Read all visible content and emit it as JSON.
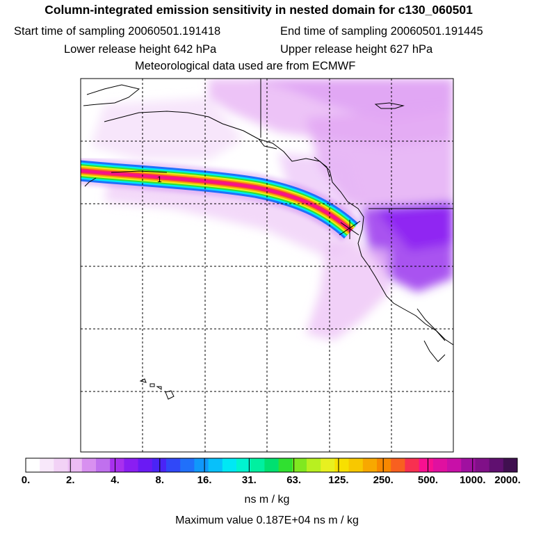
{
  "title": "Column-integrated emission sensitivity in nested domain for c130_060501",
  "start_label": "Start time of sampling 20060501.191418",
  "end_label": "End time of sampling 20060501.191445",
  "lower_label": "Lower release height  642 hPa",
  "upper_label": "Upper release height  627 hPa",
  "met_label": "Meteorological data used are from ECMWF",
  "plume_label": "1",
  "colorbar": {
    "unit": "ns m / kg",
    "tick_labels": [
      "0.",
      "2.",
      "4.",
      "8.",
      "16.",
      "31.",
      "63.",
      "125.",
      "250.",
      "500.",
      "1000.",
      "2000."
    ],
    "colors": [
      "#ffffff",
      "#f8e8fa",
      "#f2d2f6",
      "#ecbcf4",
      "#d890f0",
      "#c070ee",
      "#a830ee",
      "#8a1ef2",
      "#6a1af4",
      "#4a24f6",
      "#3048f8",
      "#2070fa",
      "#1098fa",
      "#08c0fa",
      "#00e8f4",
      "#00f4d0",
      "#00f0a0",
      "#00e070",
      "#30e030",
      "#80e820",
      "#b8f020",
      "#e8f020",
      "#f8e000",
      "#f8c800",
      "#f8a800",
      "#f88800",
      "#f86020",
      "#f83050",
      "#f81090",
      "#e010a0",
      "#c810a8",
      "#a010a0",
      "#801088",
      "#601070",
      "#401050"
    ]
  },
  "max_value_label": "Maximum value  0.187E+04 ns m / kg"
}
